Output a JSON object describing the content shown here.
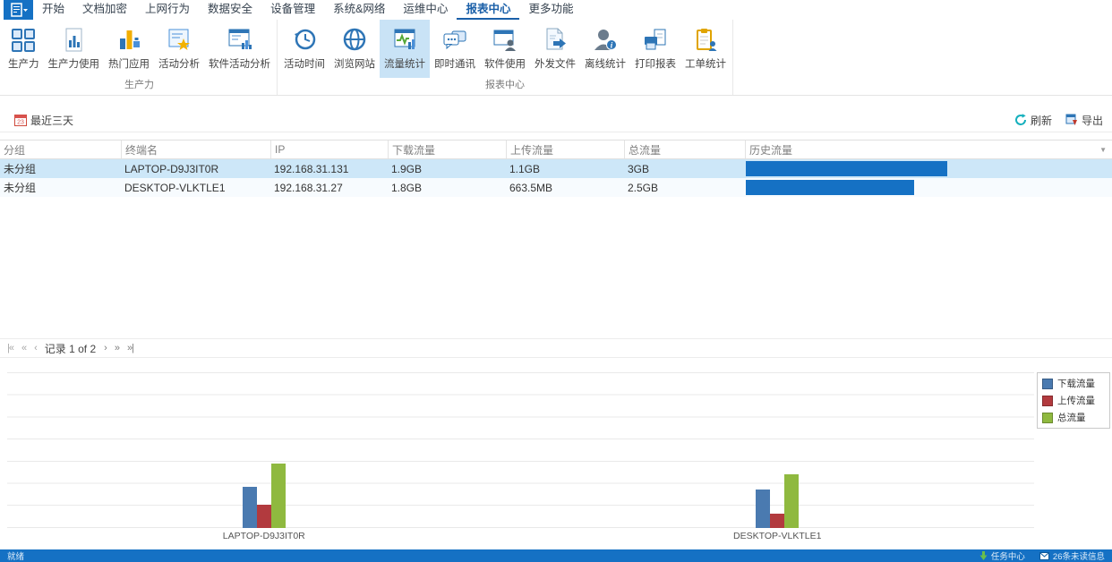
{
  "menu": {
    "tabs": [
      "开始",
      "文档加密",
      "上网行为",
      "数据安全",
      "设备管理",
      "系统&网络",
      "运维中心",
      "报表中心",
      "更多功能"
    ],
    "selected_tab": "报表中心"
  },
  "ribbon": {
    "groups": [
      {
        "label": "生产力",
        "items": [
          {
            "label": "生产力",
            "icon": "productivity-grid-icon"
          },
          {
            "label": "生产力使用",
            "icon": "productivity-usage-icon"
          },
          {
            "label": "热门应用",
            "icon": "hot-apps-icon"
          },
          {
            "label": "活动分析",
            "icon": "activity-analysis-icon"
          },
          {
            "label": "软件活动分析",
            "icon": "software-activity-icon"
          }
        ]
      },
      {
        "label": "报表中心",
        "items": [
          {
            "label": "活动时间",
            "icon": "activity-time-icon"
          },
          {
            "label": "浏览网站",
            "icon": "browse-web-icon"
          },
          {
            "label": "流量统计",
            "icon": "traffic-stats-icon",
            "selected": true
          },
          {
            "label": "即时通讯",
            "icon": "instant-messaging-icon"
          },
          {
            "label": "软件使用",
            "icon": "software-usage-icon"
          },
          {
            "label": "外发文件",
            "icon": "outgoing-files-icon"
          },
          {
            "label": "离线统计",
            "icon": "offline-stats-icon"
          },
          {
            "label": "打印报表",
            "icon": "print-report-icon"
          },
          {
            "label": "工单统计",
            "icon": "ticket-stats-icon"
          }
        ]
      }
    ]
  },
  "toolbar": {
    "date_filter": "最近三天",
    "refresh": "刷新",
    "export": "导出"
  },
  "table": {
    "columns": [
      "分组",
      "终端名",
      "IP",
      "下载流量",
      "上传流量",
      "总流量",
      "历史流量"
    ],
    "rows": [
      {
        "group": "未分组",
        "terminal": "LAPTOP-D9J3IT0R",
        "ip": "192.168.31.131",
        "download": "1.9GB",
        "upload": "1.1GB",
        "total": "3GB",
        "history_gb": 3
      },
      {
        "group": "未分组",
        "terminal": "DESKTOP-VLKTLE1",
        "ip": "192.168.31.27",
        "download": "1.8GB",
        "upload": "663.5MB",
        "total": "2.5GB",
        "history_gb": 2.5
      }
    ]
  },
  "pagination": {
    "first": "|«",
    "fast_prev": "«",
    "prev": "‹",
    "label": "记录 1 of 2",
    "next": "›",
    "fast_next": "»",
    "last": "»|"
  },
  "chart_data": {
    "type": "bar",
    "categories": [
      "LAPTOP-D9J3IT0R",
      "DESKTOP-VLKTLE1"
    ],
    "series": [
      {
        "name": "下载流量",
        "color": "#4a7ab0",
        "values_gb": [
          1.9,
          1.8
        ]
      },
      {
        "name": "上传流量",
        "color": "#b23a3e",
        "values_gb": [
          1.1,
          0.65
        ]
      },
      {
        "name": "总流量",
        "color": "#8fb93f",
        "values_gb": [
          3.0,
          2.5
        ]
      }
    ],
    "title": "",
    "xlabel": "",
    "ylabel": "",
    "ylim_gb": [
      0,
      7
    ],
    "grid": true,
    "legend_position": "top-right"
  },
  "statusbar": {
    "ready": "就绪",
    "task_center": "任务中心",
    "unread_messages": "26条未读信息"
  },
  "colors": {
    "accent_blue": "#1571c4",
    "selected_tab": "#1a5fa8",
    "ribbon_selected_bg": "#c9e3f6",
    "row_selected_bg": "#cde7f8",
    "history_bar": "#1571c4",
    "refresh_teal": "#16b0bd"
  }
}
